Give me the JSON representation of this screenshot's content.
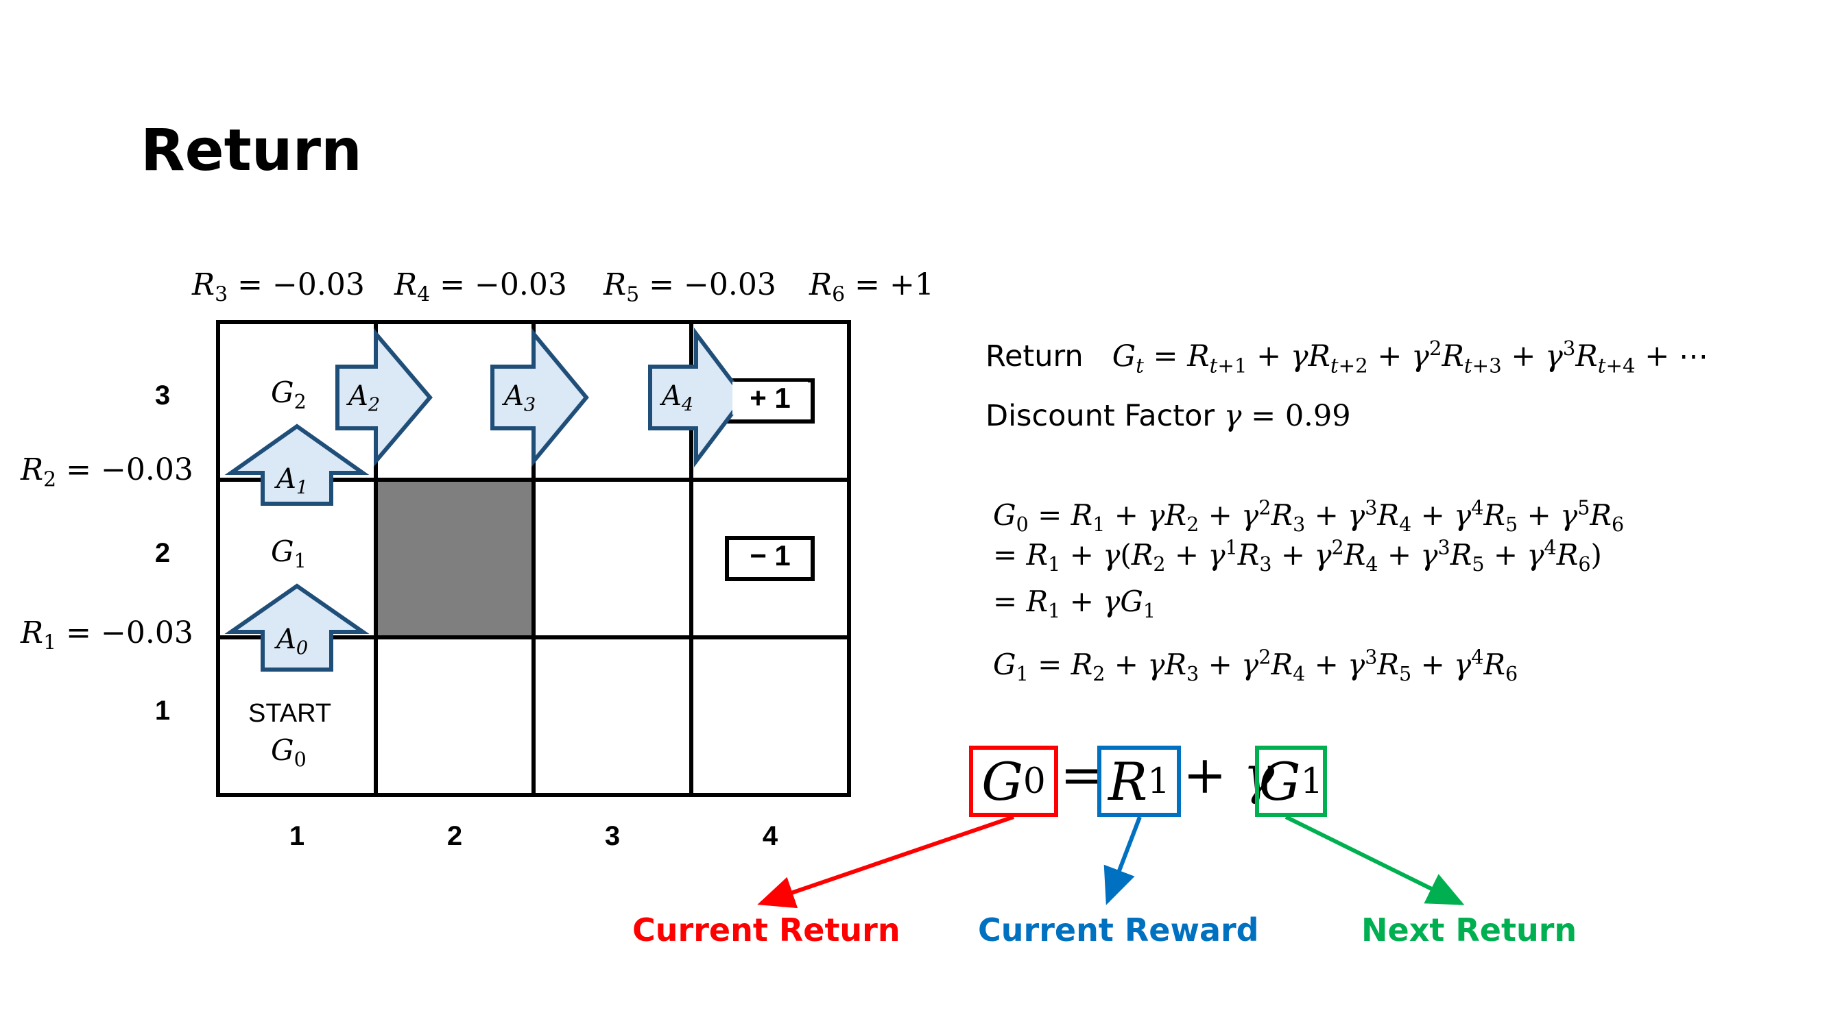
{
  "title": "Return",
  "rewards_top": [
    {
      "sym": "R",
      "sub": "3",
      "rhs": "= −0.03"
    },
    {
      "sym": "R",
      "sub": "4",
      "rhs": "= −0.03"
    },
    {
      "sym": "R",
      "sub": "5",
      "rhs": "= −0.03"
    },
    {
      "sym": "R",
      "sub": "6",
      "rhs": "= +1"
    }
  ],
  "rewards_side": [
    {
      "sym": "R",
      "sub": "2",
      "rhs": "= −0.03"
    },
    {
      "sym": "R",
      "sub": "1",
      "rhs": "= −0.03"
    }
  ],
  "grid": {
    "row_labels": [
      "3",
      "2",
      "1"
    ],
    "col_labels": [
      "1",
      "2",
      "3",
      "4"
    ],
    "start_label": "START",
    "returns": [
      {
        "sym": "G",
        "sub": "2"
      },
      {
        "sym": "G",
        "sub": "1"
      },
      {
        "sym": "G",
        "sub": "0"
      }
    ],
    "terminal_plus": "+ 1",
    "terminal_minus": "− 1",
    "wall_color": "#7f7f7f"
  },
  "actions": [
    {
      "sym": "A",
      "sub": "0"
    },
    {
      "sym": "A",
      "sub": "1"
    },
    {
      "sym": "A",
      "sub": "2"
    },
    {
      "sym": "A",
      "sub": "3"
    },
    {
      "sym": "A",
      "sub": "4"
    }
  ],
  "formulas": {
    "return_text": "Return",
    "discount_text": "Discount Factor",
    "discount_value": "= 0.99"
  },
  "decomposition": {
    "captions": {
      "current_return": "Current Return",
      "current_reward": "Current Reward",
      "next_return": "Next Return"
    },
    "colors": {
      "red": "#ff0000",
      "blue": "#0070c0",
      "green": "#00b050"
    }
  },
  "colors": {
    "arrow_fill": "#dbe8f5",
    "arrow_stroke": "#1f4e79"
  }
}
